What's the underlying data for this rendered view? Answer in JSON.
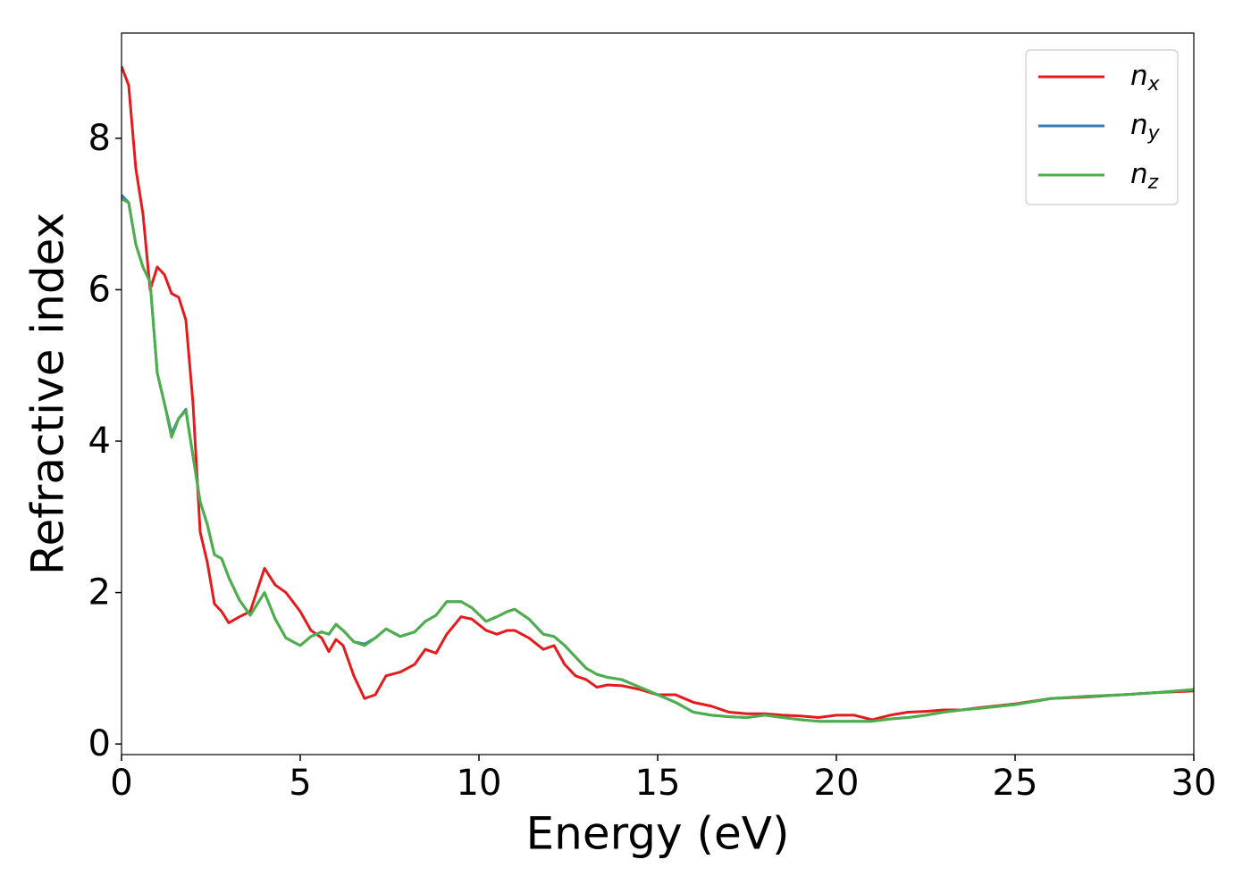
{
  "chart_data": {
    "type": "line",
    "xlabel": "Energy (eV)",
    "ylabel": "Refractive index",
    "x": [
      0,
      0.2,
      0.4,
      0.6,
      0.8,
      1.0,
      1.2,
      1.4,
      1.6,
      1.8,
      2.0,
      2.2,
      2.4,
      2.6,
      2.8,
      3.0,
      3.3,
      3.6,
      4.0,
      4.3,
      4.6,
      5.0,
      5.3,
      5.6,
      5.8,
      6.0,
      6.2,
      6.5,
      6.8,
      7.1,
      7.4,
      7.8,
      8.2,
      8.5,
      8.8,
      9.1,
      9.5,
      9.8,
      10.2,
      10.5,
      10.8,
      11.0,
      11.4,
      11.8,
      12.1,
      12.4,
      12.7,
      13.0,
      13.3,
      13.6,
      14.0,
      14.5,
      15.0,
      15.5,
      16.0,
      16.5,
      17.0,
      17.5,
      18.0,
      18.5,
      19.0,
      19.5,
      20.0,
      20.5,
      21.0,
      21.5,
      22.0,
      22.5,
      23.0,
      23.5,
      24.0,
      25,
      26,
      27,
      28,
      29,
      30
    ],
    "series": [
      {
        "name": "n_x",
        "color": "#e41a1c",
        "values": [
          8.95,
          8.7,
          7.6,
          7.0,
          6.0,
          6.3,
          6.2,
          5.95,
          5.9,
          5.6,
          4.5,
          2.8,
          2.4,
          1.85,
          1.75,
          1.6,
          1.68,
          1.75,
          2.32,
          2.1,
          2.0,
          1.75,
          1.5,
          1.4,
          1.22,
          1.38,
          1.3,
          0.9,
          0.6,
          0.65,
          0.9,
          0.95,
          1.05,
          1.25,
          1.2,
          1.45,
          1.68,
          1.65,
          1.5,
          1.45,
          1.5,
          1.5,
          1.4,
          1.25,
          1.3,
          1.05,
          0.9,
          0.85,
          0.75,
          0.78,
          0.77,
          0.72,
          0.65,
          0.65,
          0.55,
          0.5,
          0.42,
          0.4,
          0.4,
          0.38,
          0.37,
          0.35,
          0.38,
          0.38,
          0.32,
          0.38,
          0.42,
          0.43,
          0.45,
          0.45,
          0.48,
          0.53,
          0.6,
          0.62,
          0.65,
          0.68,
          0.7
        ]
      },
      {
        "name": "n_y",
        "color": "#377eb8",
        "values": [
          7.25,
          7.15,
          6.6,
          6.3,
          6.1,
          4.9,
          4.5,
          4.1,
          4.3,
          4.42,
          3.8,
          3.2,
          2.9,
          2.5,
          2.45,
          2.2,
          1.9,
          1.7,
          2.0,
          1.65,
          1.4,
          1.3,
          1.42,
          1.48,
          1.45,
          1.58,
          1.5,
          1.35,
          1.32,
          1.4,
          1.52,
          1.42,
          1.48,
          1.62,
          1.7,
          1.88,
          1.88,
          1.8,
          1.62,
          1.68,
          1.75,
          1.78,
          1.65,
          1.45,
          1.42,
          1.3,
          1.15,
          1.0,
          0.92,
          0.88,
          0.85,
          0.75,
          0.65,
          0.55,
          0.42,
          0.38,
          0.36,
          0.35,
          0.38,
          0.35,
          0.32,
          0.3,
          0.3,
          0.3,
          0.3,
          0.33,
          0.35,
          0.38,
          0.42,
          0.45,
          0.47,
          0.52,
          0.6,
          0.63,
          0.65,
          0.68,
          0.72
        ]
      },
      {
        "name": "n_z",
        "color": "#4daf4a",
        "values": [
          7.2,
          7.15,
          6.6,
          6.3,
          6.1,
          4.9,
          4.5,
          4.05,
          4.3,
          4.4,
          3.8,
          3.2,
          2.9,
          2.5,
          2.45,
          2.2,
          1.9,
          1.7,
          2.0,
          1.65,
          1.4,
          1.3,
          1.42,
          1.48,
          1.45,
          1.58,
          1.5,
          1.35,
          1.3,
          1.4,
          1.52,
          1.42,
          1.48,
          1.62,
          1.7,
          1.88,
          1.88,
          1.8,
          1.62,
          1.68,
          1.75,
          1.78,
          1.65,
          1.45,
          1.42,
          1.3,
          1.15,
          1.0,
          0.92,
          0.88,
          0.85,
          0.75,
          0.65,
          0.55,
          0.42,
          0.38,
          0.36,
          0.35,
          0.38,
          0.35,
          0.32,
          0.3,
          0.3,
          0.3,
          0.3,
          0.33,
          0.35,
          0.38,
          0.42,
          0.45,
          0.47,
          0.52,
          0.6,
          0.63,
          0.65,
          0.68,
          0.72
        ]
      }
    ],
    "xlim": [
      0,
      30
    ],
    "ylim": [
      -0.14,
      9.39
    ],
    "xticks": [
      0,
      5,
      10,
      15,
      20,
      25,
      30
    ],
    "yticks": [
      0,
      2,
      4,
      6,
      8
    ],
    "legend": "upper right",
    "grid": false
  }
}
